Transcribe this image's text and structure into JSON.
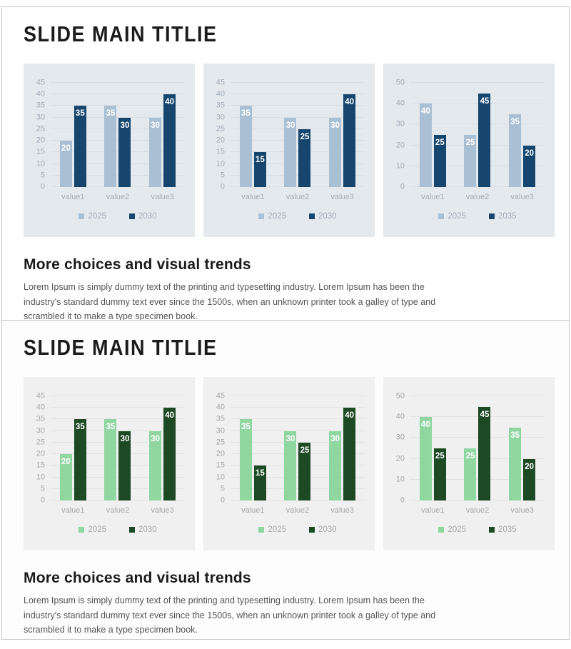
{
  "slides": [
    {
      "title": "SLIDE MAIN TITLIE",
      "section_heading": "More choices and visual trends",
      "section_body": "Lorem Ipsum is simply dummy text of the printing and typesetting industry. Lorem Ipsum has been the industry's standard dummy text ever since the 1500s, when an unknown printer took a galley of type and scrambled it to make a type specimen book."
    },
    {
      "title": "SLIDE MAIN TITLIE",
      "section_heading": "More choices and visual trends",
      "section_body": "Lorem Ipsum is simply dummy text of the printing and typesetting industry. Lorem Ipsum has been the industry's standard dummy text ever since the 1500s, when an unknown printer took a galley of type and scrambled it to make a type specimen book."
    }
  ],
  "chart_data": [
    {
      "type": "bar",
      "categories": [
        "value1",
        "value2",
        "value3"
      ],
      "series": [
        {
          "name": "2025",
          "color": "#a9c0d4",
          "values": [
            20,
            35,
            30
          ]
        },
        {
          "name": "2030",
          "color": "#16466e",
          "values": [
            35,
            30,
            40
          ]
        }
      ],
      "ylim": [
        0,
        45
      ],
      "ytick_step": 5,
      "grid": true,
      "legend_position": "bottom",
      "panel_bg": "#e4e9ed",
      "grid_color": "#d7dee4",
      "axis_text_color": "#a2adb8",
      "title": "",
      "xlabel": "",
      "ylabel": ""
    },
    {
      "type": "bar",
      "categories": [
        "value1",
        "value2",
        "value3"
      ],
      "series": [
        {
          "name": "2025",
          "color": "#a9c0d4",
          "values": [
            35,
            30,
            30
          ]
        },
        {
          "name": "2030",
          "color": "#16466e",
          "values": [
            15,
            25,
            40
          ]
        }
      ],
      "ylim": [
        0,
        45
      ],
      "ytick_step": 5,
      "grid": true,
      "legend_position": "bottom",
      "panel_bg": "#e4e9ed",
      "grid_color": "#d7dee4",
      "axis_text_color": "#a2adb8",
      "title": "",
      "xlabel": "",
      "ylabel": ""
    },
    {
      "type": "bar",
      "categories": [
        "value1",
        "value2",
        "value3"
      ],
      "series": [
        {
          "name": "2025",
          "color": "#a9c0d4",
          "values": [
            40,
            25,
            35
          ]
        },
        {
          "name": "2035",
          "color": "#16466e",
          "values": [
            25,
            45,
            20
          ]
        }
      ],
      "ylim": [
        0,
        50
      ],
      "ytick_step": 10,
      "grid": true,
      "legend_position": "bottom",
      "panel_bg": "#e4e9ed",
      "grid_color": "#d7dee4",
      "axis_text_color": "#a2adb8",
      "title": "",
      "xlabel": "",
      "ylabel": ""
    },
    {
      "type": "bar",
      "categories": [
        "value1",
        "value2",
        "value3"
      ],
      "series": [
        {
          "name": "2025",
          "color": "#8fd6a1",
          "values": [
            20,
            35,
            30
          ]
        },
        {
          "name": "2030",
          "color": "#1d4a24",
          "values": [
            35,
            30,
            40
          ]
        }
      ],
      "ylim": [
        0,
        45
      ],
      "ytick_step": 5,
      "grid": true,
      "legend_position": "bottom",
      "panel_bg": "#f0f0f0",
      "grid_color": "#e2e2e2",
      "axis_text_color": "#a8a8a8",
      "title": "",
      "xlabel": "",
      "ylabel": ""
    },
    {
      "type": "bar",
      "categories": [
        "value1",
        "value2",
        "value3"
      ],
      "series": [
        {
          "name": "2025",
          "color": "#8fd6a1",
          "values": [
            35,
            30,
            30
          ]
        },
        {
          "name": "2030",
          "color": "#1d4a24",
          "values": [
            15,
            25,
            40
          ]
        }
      ],
      "ylim": [
        0,
        45
      ],
      "ytick_step": 5,
      "grid": true,
      "legend_position": "bottom",
      "panel_bg": "#f0f0f0",
      "grid_color": "#e2e2e2",
      "axis_text_color": "#a8a8a8",
      "title": "",
      "xlabel": "",
      "ylabel": ""
    },
    {
      "type": "bar",
      "categories": [
        "value1",
        "value2",
        "value3"
      ],
      "series": [
        {
          "name": "2025",
          "color": "#8fd6a1",
          "values": [
            40,
            25,
            35
          ]
        },
        {
          "name": "2035",
          "color": "#1d4a24",
          "values": [
            25,
            45,
            20
          ]
        }
      ],
      "ylim": [
        0,
        50
      ],
      "ytick_step": 10,
      "grid": true,
      "legend_position": "bottom",
      "panel_bg": "#f0f0f0",
      "grid_color": "#e2e2e2",
      "axis_text_color": "#a8a8a8",
      "title": "",
      "xlabel": "",
      "ylabel": ""
    }
  ]
}
